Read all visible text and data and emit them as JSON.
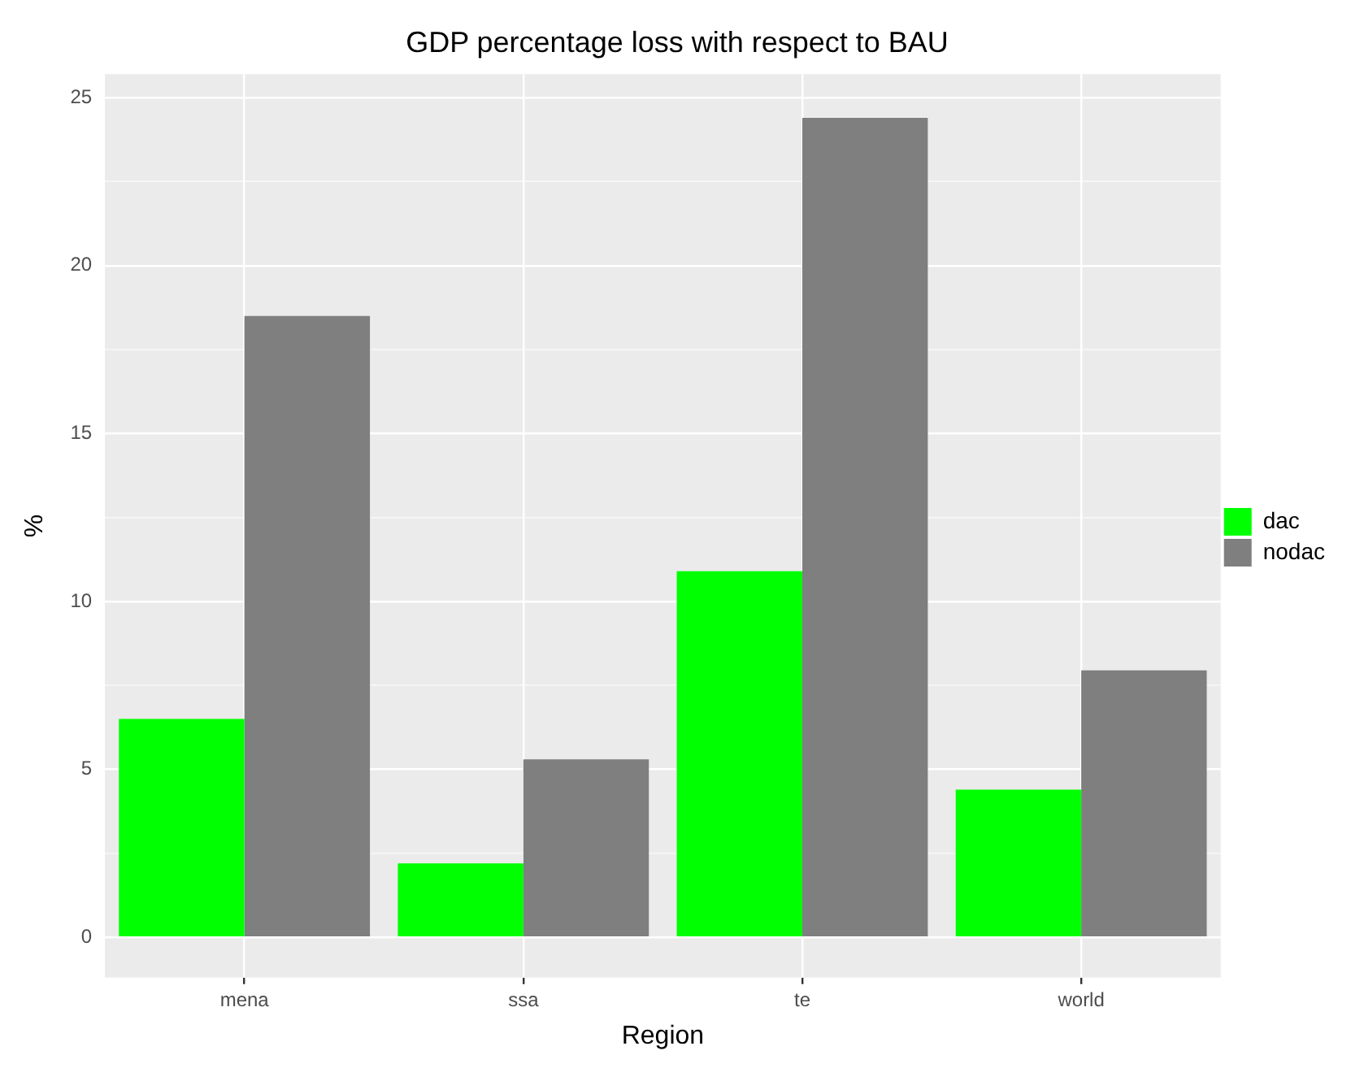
{
  "chart_data": {
    "type": "bar",
    "title": "GDP percentage loss with respect to BAU",
    "xlabel": "Region",
    "ylabel": "%",
    "categories": [
      "mena",
      "ssa",
      "te",
      "world"
    ],
    "series": [
      {
        "name": "dac",
        "color": "#00ff00",
        "values": [
          6.5,
          2.2,
          10.9,
          4.4
        ]
      },
      {
        "name": "nodac",
        "color": "#7f7f7f",
        "values": [
          18.5,
          5.3,
          24.4,
          7.95
        ]
      }
    ],
    "ylim": [
      -1.2,
      25.7
    ],
    "yticks": [
      0,
      {
        "value": 2.5,
        "label": null
      },
      5,
      {
        "value": 7.5,
        "label": null
      },
      10,
      {
        "value": 12.5,
        "label": null
      },
      15,
      {
        "value": 17.5,
        "label": null
      },
      20,
      {
        "value": 22.5,
        "label": null
      },
      25
    ],
    "grid": true,
    "legend": "right"
  }
}
